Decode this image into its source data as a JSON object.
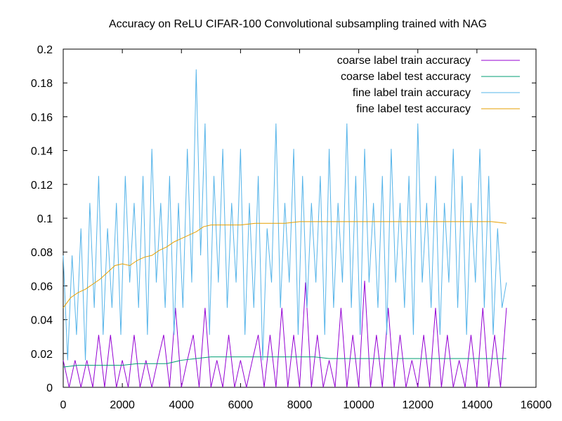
{
  "chart_data": {
    "type": "line",
    "title": "Accuracy on ReLU CIFAR-100 Convolutional subsampling trained with NAG",
    "xlabel": "",
    "ylabel": "",
    "xlim": [
      0,
      16000
    ],
    "ylim": [
      0,
      0.2
    ],
    "x_ticks": [
      0,
      2000,
      4000,
      6000,
      8000,
      10000,
      12000,
      14000,
      16000
    ],
    "x_tick_labels": [
      "0",
      "2000",
      "4000",
      "6000",
      "8000",
      "10000",
      "12000",
      "14000",
      "16000"
    ],
    "y_ticks": [
      0,
      0.02,
      0.04,
      0.06,
      0.08,
      0.1,
      0.12,
      0.14,
      0.16,
      0.18,
      0.2
    ],
    "y_tick_labels": [
      "0",
      "0.02",
      "0.04",
      "0.06",
      "0.08",
      "0.1",
      "0.12",
      "0.14",
      "0.16",
      "0.18",
      "0.2"
    ],
    "grid": false,
    "legend_position": "top-right",
    "series": [
      {
        "name": "coarse label train accuracy",
        "color": "#9400d3",
        "x": [
          0,
          200,
          400,
          600,
          800,
          1000,
          1200,
          1400,
          1600,
          1800,
          2000,
          2200,
          2400,
          2600,
          2800,
          3000,
          3200,
          3400,
          3600,
          3800,
          4000,
          4200,
          4400,
          4600,
          4800,
          5000,
          5200,
          5400,
          5600,
          5800,
          6000,
          6200,
          6400,
          6600,
          6800,
          7000,
          7200,
          7400,
          7600,
          7800,
          8000,
          8200,
          8400,
          8600,
          8800,
          9000,
          9200,
          9400,
          9600,
          9800,
          10000,
          10200,
          10400,
          10600,
          10800,
          11000,
          11200,
          11400,
          11600,
          11800,
          12000,
          12200,
          12400,
          12600,
          12800,
          13000,
          13200,
          13400,
          13600,
          13800,
          14000,
          14200,
          14400,
          14600,
          14800,
          15000
        ],
        "y": [
          0.016,
          0.0,
          0.016,
          0.0,
          0.016,
          0.0,
          0.031,
          0.0,
          0.031,
          0.0,
          0.016,
          0.0,
          0.031,
          0.0,
          0.016,
          0.0,
          0.016,
          0.031,
          0.0,
          0.047,
          0.0,
          0.016,
          0.031,
          0.0,
          0.047,
          0.0,
          0.016,
          0.0,
          0.031,
          0.0,
          0.016,
          0.0,
          0.016,
          0.031,
          0.0,
          0.031,
          0.0,
          0.047,
          0.0,
          0.031,
          0.0,
          0.062,
          0.0,
          0.031,
          0.0,
          0.016,
          0.0,
          0.047,
          0.0,
          0.031,
          0.0,
          0.063,
          0.0,
          0.031,
          0.0,
          0.047,
          0.0,
          0.031,
          0.0,
          0.016,
          0.0,
          0.031,
          0.0,
          0.047,
          0.0,
          0.031,
          0.0,
          0.016,
          0.0,
          0.031,
          0.0,
          0.047,
          0.0,
          0.031,
          0.0,
          0.047
        ]
      },
      {
        "name": "coarse label test accuracy",
        "color": "#009e73",
        "x": [
          0,
          500,
          1000,
          1500,
          2000,
          2500,
          3000,
          3500,
          4000,
          4500,
          5000,
          5500,
          6000,
          6500,
          7000,
          7500,
          8000,
          8500,
          9000,
          9500,
          10000,
          10500,
          11000,
          11500,
          12000,
          12500,
          13000,
          13500,
          14000,
          14500,
          15000
        ],
        "y": [
          0.012,
          0.013,
          0.013,
          0.013,
          0.013,
          0.014,
          0.014,
          0.014,
          0.016,
          0.017,
          0.018,
          0.018,
          0.018,
          0.018,
          0.018,
          0.018,
          0.018,
          0.018,
          0.017,
          0.017,
          0.017,
          0.017,
          0.017,
          0.017,
          0.017,
          0.017,
          0.017,
          0.017,
          0.017,
          0.017,
          0.017
        ]
      },
      {
        "name": "fine label train accuracy",
        "color": "#56b4e9",
        "x": [
          0,
          150,
          300,
          450,
          600,
          750,
          900,
          1050,
          1200,
          1350,
          1500,
          1650,
          1800,
          1950,
          2100,
          2250,
          2400,
          2550,
          2700,
          2850,
          3000,
          3150,
          3300,
          3450,
          3600,
          3750,
          3900,
          4050,
          4200,
          4350,
          4500,
          4650,
          4800,
          4950,
          5100,
          5250,
          5400,
          5550,
          5700,
          5850,
          6000,
          6150,
          6300,
          6450,
          6600,
          6750,
          6900,
          7050,
          7200,
          7350,
          7500,
          7650,
          7800,
          7950,
          8100,
          8250,
          8400,
          8550,
          8700,
          8850,
          9000,
          9150,
          9300,
          9450,
          9600,
          9750,
          9900,
          10050,
          10200,
          10350,
          10500,
          10650,
          10800,
          10950,
          11100,
          11250,
          11400,
          11550,
          11700,
          11850,
          12000,
          12150,
          12300,
          12450,
          12600,
          12750,
          12900,
          13050,
          13200,
          13350,
          13500,
          13650,
          13800,
          13950,
          14100,
          14250,
          14400,
          14550,
          14700,
          14850,
          15000
        ],
        "y": [
          0.078,
          0.016,
          0.078,
          0.031,
          0.094,
          0.016,
          0.109,
          0.047,
          0.125,
          0.031,
          0.094,
          0.047,
          0.109,
          0.031,
          0.125,
          0.062,
          0.109,
          0.047,
          0.125,
          0.031,
          0.141,
          0.062,
          0.109,
          0.047,
          0.125,
          0.031,
          0.109,
          0.047,
          0.141,
          0.062,
          0.188,
          0.078,
          0.156,
          0.031,
          0.125,
          0.062,
          0.141,
          0.047,
          0.109,
          0.062,
          0.141,
          0.031,
          0.109,
          0.047,
          0.125,
          0.016,
          0.094,
          0.062,
          0.156,
          0.047,
          0.109,
          0.062,
          0.141,
          0.031,
          0.125,
          0.047,
          0.109,
          0.062,
          0.125,
          0.031,
          0.141,
          0.047,
          0.109,
          0.062,
          0.156,
          0.047,
          0.125,
          0.031,
          0.141,
          0.062,
          0.109,
          0.047,
          0.125,
          0.031,
          0.141,
          0.062,
          0.109,
          0.047,
          0.125,
          0.031,
          0.156,
          0.062,
          0.109,
          0.047,
          0.125,
          0.031,
          0.109,
          0.062,
          0.141,
          0.047,
          0.125,
          0.031,
          0.109,
          0.062,
          0.141,
          0.047,
          0.125,
          0.031,
          0.094,
          0.047,
          0.062
        ]
      },
      {
        "name": "fine label test accuracy",
        "color": "#e69f00",
        "x": [
          0,
          250,
          500,
          750,
          1000,
          1250,
          1500,
          1750,
          2000,
          2250,
          2500,
          2750,
          3000,
          3250,
          3500,
          3750,
          4000,
          4250,
          4500,
          4750,
          5000,
          5500,
          6000,
          6500,
          7000,
          7500,
          8000,
          8500,
          9000,
          9500,
          10000,
          10500,
          11000,
          11500,
          12000,
          12500,
          13000,
          13500,
          14000,
          14500,
          15000
        ],
        "y": [
          0.047,
          0.053,
          0.056,
          0.058,
          0.061,
          0.064,
          0.068,
          0.072,
          0.073,
          0.072,
          0.075,
          0.077,
          0.078,
          0.081,
          0.083,
          0.086,
          0.088,
          0.09,
          0.092,
          0.095,
          0.096,
          0.096,
          0.096,
          0.097,
          0.097,
          0.097,
          0.098,
          0.098,
          0.098,
          0.098,
          0.098,
          0.098,
          0.098,
          0.098,
          0.098,
          0.098,
          0.098,
          0.098,
          0.098,
          0.098,
          0.097
        ]
      }
    ]
  }
}
